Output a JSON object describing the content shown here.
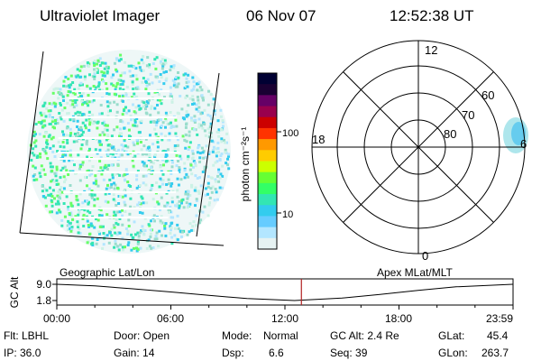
{
  "header": {
    "instrument": "Ultraviolet Imager",
    "date": "06 Nov 07",
    "time": "12:52:38 UT"
  },
  "colorbar": {
    "label": "photon cm⁻²s⁻¹",
    "ticks": [
      "100",
      "10"
    ],
    "colors": [
      "#000033",
      "#1a0033",
      "#660066",
      "#99004d",
      "#cc0000",
      "#ff3300",
      "#ff9900",
      "#ffcc00",
      "#ccff00",
      "#66ff33",
      "#33ff66",
      "#33e6b3",
      "#33ccee",
      "#66ccff",
      "#b3e6ff",
      "#e6f2f2"
    ]
  },
  "polar": {
    "mlt_labels": {
      "top": "12",
      "left": "18",
      "right": "6",
      "bottom": "0"
    },
    "lat_labels": [
      "60",
      "70",
      "80"
    ]
  },
  "timeline": {
    "left_label": "Geographic Lat/Lon",
    "right_label": "Apex MLat/MLT",
    "axis_label": "GC Alt",
    "y_ticks": [
      "9.0",
      "1.8"
    ],
    "x_ticks": [
      "00:00",
      "06:00",
      "12:00",
      "18:00",
      "23:59"
    ]
  },
  "status": {
    "filter": "Flt: LBHL",
    "ip": "IP: 36.0",
    "door": "Door: Open",
    "gain": "Gain: 14",
    "mode_label": "Mode:",
    "mode_value": "Normal",
    "dsp_label": "Dsp:",
    "dsp_value": "6.6",
    "gc_alt": "GC Alt: 2.4 Re",
    "seq": "Seq: 39",
    "glat_label": "GLat:",
    "glat_value": "45.4",
    "glon_label": "GLon:",
    "glon_value": "263.7"
  },
  "chart_data": [
    {
      "type": "heatmap",
      "title": "Ultraviolet Imager",
      "colorscale": "log photon cm-2 s-1",
      "ticks": [
        10,
        100
      ]
    },
    {
      "type": "polar",
      "rings_mlat": [
        60,
        70,
        80
      ],
      "mlt_labels": [
        12,
        18,
        6,
        0
      ]
    },
    {
      "type": "line",
      "ylabel": "GC Alt",
      "x_range": [
        "00:00",
        "23:59"
      ],
      "ylim": [
        1.8,
        9.0
      ],
      "x": [
        0,
        2,
        4,
        6,
        8,
        10,
        12.5,
        15,
        17,
        19,
        21,
        23.98
      ],
      "values": [
        9.0,
        8.3,
        7.0,
        5.6,
        4.1,
        2.7,
        1.8,
        2.9,
        4.5,
        6.3,
        7.9,
        9.0
      ],
      "marker_time": "12:52"
    }
  ]
}
